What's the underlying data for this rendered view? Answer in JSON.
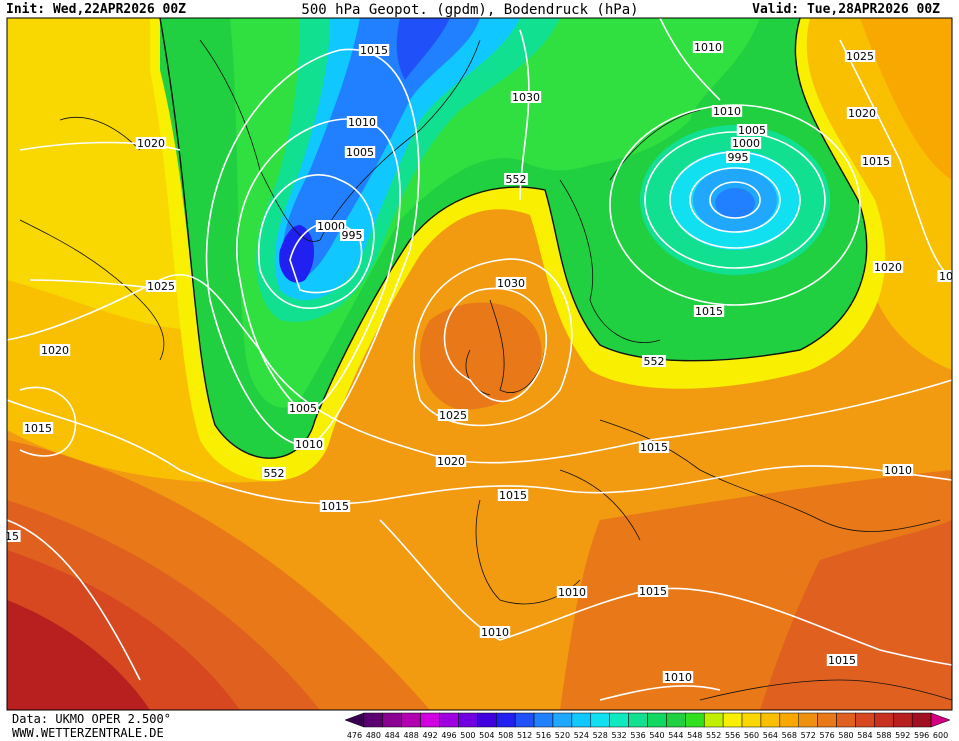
{
  "header": {
    "init": "Init: Wed,22APR2026 00Z",
    "title": "500 hPa Geopot. (gpdm), Bodendruck (hPa)",
    "valid": "Valid: Tue,28APR2026 00Z"
  },
  "map": {
    "labels": [
      "1015",
      "1010",
      "1025",
      "1030",
      "1010",
      "1010",
      "1020",
      "1005",
      "1000",
      "995",
      "1015",
      "1020",
      "1005",
      "552",
      "1000",
      "995",
      "1020",
      "10",
      "1025",
      "1030",
      "1015",
      "552",
      "1020",
      "1005",
      "1025",
      "1015",
      "1010",
      "1015",
      "1020",
      "552",
      "1010",
      "1015",
      "1015",
      "15",
      "1010",
      "1015",
      "1010",
      "1015",
      "1010"
    ]
  },
  "footer": {
    "source": "Data: UKMO OPER 2.500°",
    "site": "WWW.WETTERZENTRALE.DE"
  },
  "legend": {
    "items": [
      {
        "label": 476,
        "color": "#3a0050"
      },
      {
        "label": 480,
        "color": "#5a0070"
      },
      {
        "label": 484,
        "color": "#8a0090"
      },
      {
        "label": 488,
        "color": "#b000b0"
      },
      {
        "label": 492,
        "color": "#d000e0"
      },
      {
        "label": 496,
        "color": "#a000e0"
      },
      {
        "label": 500,
        "color": "#7000e0"
      },
      {
        "label": 504,
        "color": "#4000e0"
      },
      {
        "label": 508,
        "color": "#2020f0"
      },
      {
        "label": 512,
        "color": "#2050f8"
      },
      {
        "label": 516,
        "color": "#2080ff"
      },
      {
        "label": 520,
        "color": "#20a8ff"
      },
      {
        "label": 524,
        "color": "#10c8ff"
      },
      {
        "label": 528,
        "color": "#10e0f0"
      },
      {
        "label": 532,
        "color": "#10e8c0"
      },
      {
        "label": 536,
        "color": "#10e090"
      },
      {
        "label": 540,
        "color": "#10d860"
      },
      {
        "label": 544,
        "color": "#20d040"
      },
      {
        "label": 548,
        "color": "#30e020"
      },
      {
        "label": 552,
        "color": "#c0f000"
      },
      {
        "label": 556,
        "color": "#f8f000"
      },
      {
        "label": 560,
        "color": "#f8d800"
      },
      {
        "label": 564,
        "color": "#f8c000"
      },
      {
        "label": 568,
        "color": "#f8a800"
      },
      {
        "label": 572,
        "color": "#f09010"
      },
      {
        "label": 576,
        "color": "#e87818"
      },
      {
        "label": 580,
        "color": "#e06020"
      },
      {
        "label": 584,
        "color": "#d84820"
      },
      {
        "label": 588,
        "color": "#c83020"
      },
      {
        "label": 592,
        "color": "#b82020"
      },
      {
        "label": 596,
        "color": "#a01020"
      },
      {
        "label": 600,
        "color": "#d00080"
      }
    ]
  }
}
